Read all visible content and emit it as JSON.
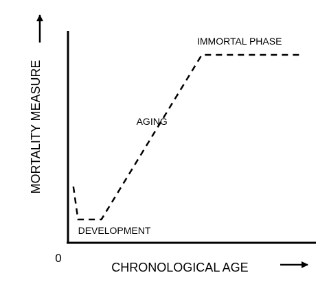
{
  "colors": {
    "line": "#000000",
    "background": "#ffffff"
  },
  "chart_data": {
    "type": "line",
    "xlabel": "CHRONOLOGICAL AGE",
    "ylabel": "MORTALITY MEASURE",
    "origin_label": "0",
    "line_style": "dashed",
    "grid": false,
    "axis_arrows": true,
    "series": [
      {
        "points": [
          {
            "x": 0.02,
            "y": 0.26
          },
          {
            "x": 0.04,
            "y": 0.1
          },
          {
            "x": 0.14,
            "y": 0.1
          },
          {
            "x": 0.57,
            "y": 0.9
          },
          {
            "x": 1.0,
            "y": 0.9
          }
        ]
      }
    ],
    "annotations": [
      {
        "text": "DEVELOPMENT",
        "x": 0.04,
        "y": 0.03
      },
      {
        "text": "AGING",
        "x": 0.29,
        "y": 0.56
      },
      {
        "text": "IMMORTAL PHASE",
        "x": 0.55,
        "y": 0.95
      }
    ],
    "xlim": [
      0,
      1
    ],
    "ylim": [
      0,
      1
    ]
  }
}
